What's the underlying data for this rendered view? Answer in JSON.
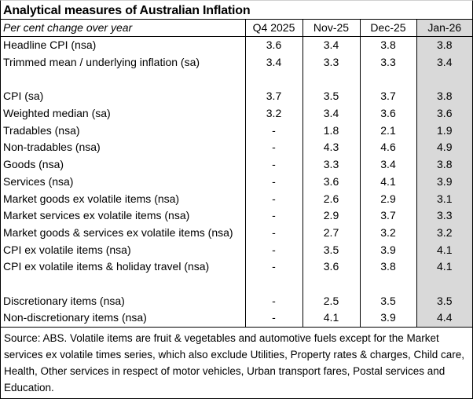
{
  "title": "Analytical measures of Australian Inflation",
  "header": {
    "label": "Per cent change over year",
    "columns": [
      "Q4 2025",
      "Nov-25",
      "Dec-25",
      "Jan-26"
    ]
  },
  "highlight_color": "#d9d9d9",
  "rows": [
    {
      "label": "Headline CPI (nsa)",
      "values": [
        "3.6",
        "3.4",
        "3.8",
        "3.8"
      ]
    },
    {
      "label": "Trimmed mean / underlying inflation (sa)",
      "values": [
        "3.4",
        "3.3",
        "3.3",
        "3.4"
      ]
    },
    {
      "label": "",
      "values": [
        "",
        "",
        "",
        ""
      ]
    },
    {
      "label": "CPI (sa)",
      "values": [
        "3.7",
        "3.5",
        "3.7",
        "3.8"
      ]
    },
    {
      "label": "Weighted median (sa)",
      "values": [
        "3.2",
        "3.4",
        "3.6",
        "3.6"
      ]
    },
    {
      "label": "Tradables (nsa)",
      "values": [
        "-",
        "1.8",
        "2.1",
        "1.9"
      ]
    },
    {
      "label": "Non-tradables (nsa)",
      "values": [
        "-",
        "4.3",
        "4.6",
        "4.9"
      ]
    },
    {
      "label": "Goods (nsa)",
      "values": [
        "-",
        "3.3",
        "3.4",
        "3.8"
      ]
    },
    {
      "label": "Services (nsa)",
      "values": [
        "-",
        "3.6",
        "4.1",
        "3.9"
      ]
    },
    {
      "label": "Market goods ex volatile items (nsa)",
      "values": [
        "-",
        "2.6",
        "2.9",
        "3.1"
      ]
    },
    {
      "label": "Market services ex volatile items (nsa)",
      "values": [
        "-",
        "2.9",
        "3.7",
        "3.3"
      ]
    },
    {
      "label": "Market goods & services ex volatile items (nsa)",
      "values": [
        "-",
        "2.7",
        "3.2",
        "3.2"
      ]
    },
    {
      "label": "CPI ex volatile items (nsa)",
      "values": [
        "-",
        "3.5",
        "3.9",
        "4.1"
      ]
    },
    {
      "label": "CPI ex volatile items & holiday travel (nsa)",
      "values": [
        "-",
        "3.6",
        "3.8",
        "4.1"
      ]
    },
    {
      "label": "",
      "values": [
        "",
        "",
        "",
        ""
      ]
    },
    {
      "label": "Discretionary items (nsa)",
      "values": [
        "-",
        "2.5",
        "3.5",
        "3.5"
      ]
    },
    {
      "label": "Non-discretionary items (nsa)",
      "values": [
        "-",
        "4.1",
        "3.9",
        "4.4"
      ]
    }
  ],
  "footer": "Source: ABS. Volatile items are fruit & vegetables and automotive fuels except for the Market services ex volatile times series, which also exclude Utilities, Property rates & charges, Child care, Health, Other services in respect of motor vehicles, Urban transport fares, Postal services and Education."
}
